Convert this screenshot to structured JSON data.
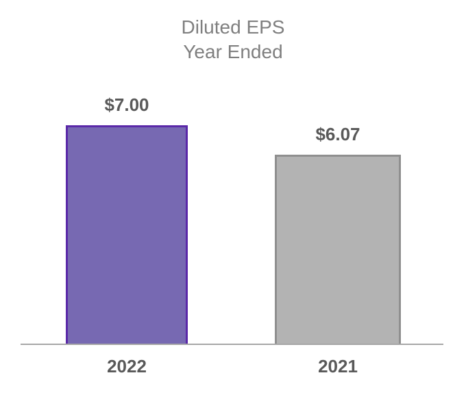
{
  "chart_data": {
    "type": "bar",
    "title": "Diluted EPS Year Ended",
    "title_lines": [
      "Diluted EPS",
      "Year Ended"
    ],
    "categories": [
      "2022",
      "2021"
    ],
    "values": [
      7.0,
      6.07
    ],
    "series": [
      {
        "category": "2022",
        "value": 7.0,
        "label": "$7.00",
        "fill": "#7769b2",
        "border": "#5a28a8"
      },
      {
        "category": "2021",
        "value": 6.07,
        "label": "$6.07",
        "fill": "#b3b3b3",
        "border": "#8f8f8f"
      }
    ],
    "ylim": [
      0,
      7
    ],
    "grid": false,
    "legend": false,
    "xlabel": "",
    "ylabel": "",
    "colors": {
      "title_text": "#7f7f7f",
      "label_text": "#595959",
      "axis_line": "#a6a6a6",
      "background": "#ffffff"
    }
  }
}
